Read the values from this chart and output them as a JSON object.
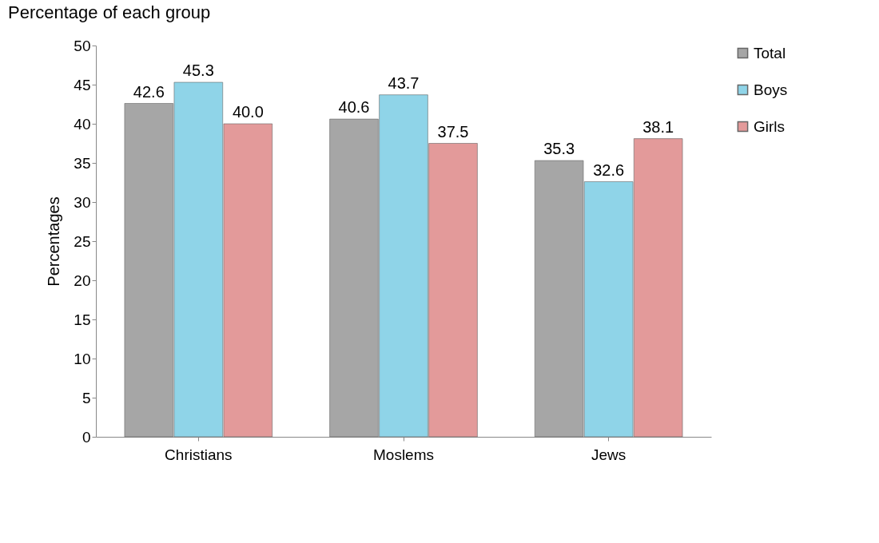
{
  "chart_data": {
    "type": "bar",
    "title": "Percentage of each group",
    "ylabel": "Percentages",
    "categories": [
      "Christians",
      "Moslems",
      "Jews"
    ],
    "series": [
      {
        "name": "Total",
        "color": "#a6a6a6",
        "values": [
          42.6,
          40.6,
          35.3
        ],
        "value_labels": [
          "42.6",
          "40.6",
          "35.3"
        ]
      },
      {
        "name": "Boys",
        "color": "#8fd4e8",
        "values": [
          45.3,
          43.7,
          32.6
        ],
        "value_labels": [
          "45.3",
          "43.7",
          "32.6"
        ]
      },
      {
        "name": "Girls",
        "color": "#e39a9a",
        "values": [
          40.0,
          37.5,
          38.1
        ],
        "value_labels": [
          "40.0",
          "37.5",
          "38.1"
        ]
      }
    ],
    "ylim": [
      0,
      50
    ],
    "yticks": [
      0,
      5,
      10,
      15,
      20,
      25,
      30,
      35,
      40,
      45,
      50
    ],
    "grid": false,
    "legend": "right"
  }
}
